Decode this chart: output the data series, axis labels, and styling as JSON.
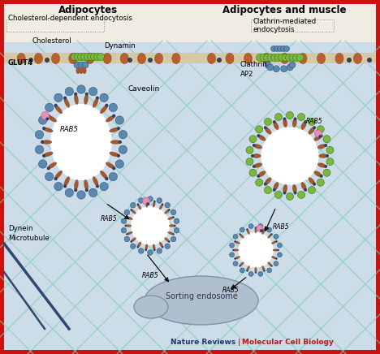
{
  "border_color": "#cc1111",
  "bg_color": "#ccdce8",
  "header_bg": "#f0ece2",
  "left_header": "Adipocytes",
  "right_header": "Adipocytes and muscle",
  "left_sub": "Cholesterol-dependent endocytosis",
  "right_sub": "Clathrin-mediated\nendocytosis",
  "journal": "Nature Reviews",
  "journal_color": "#1a3a6e",
  "pipe_color": "#cc1111",
  "pipe_text": "Molecular Cell Biology",
  "pipe_text_color": "#cc1111",
  "grid_color": "#7ecfb8",
  "membrane_color": "#d4c8a8",
  "protein_color": "#b86030",
  "protein_edge": "#8a4820",
  "coat_blue": "#5a8ab0",
  "coat_brown": "#a05830",
  "clathrin_green": "#7ab840",
  "dot_dark": "#304060",
  "pink_dot": "#e890b0",
  "sorting_color": "#b0bfcf",
  "microtubule_color": "#304870",
  "arrow_color": "#101010"
}
